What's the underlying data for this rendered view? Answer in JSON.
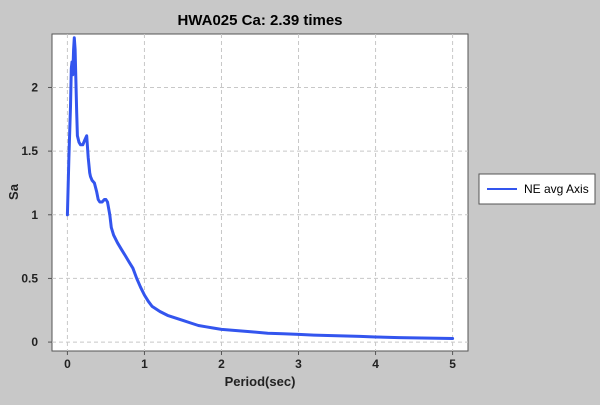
{
  "chart_data": {
    "type": "line",
    "title": "HWA025 Ca: 2.39 times",
    "xlabel": "Period(sec)",
    "ylabel": "Sa",
    "xlim": [
      -0.2,
      5.2
    ],
    "ylim": [
      -0.07,
      2.42
    ],
    "x_ticks": [
      0,
      1,
      2,
      3,
      4,
      5
    ],
    "y_ticks": [
      0,
      0.5,
      1,
      1.5,
      2
    ],
    "y_tick_labels": [
      "0",
      "0.5",
      "1",
      "1.5",
      "2"
    ],
    "grid": true,
    "legend_position": "right",
    "colors": {
      "series": "#3355ee",
      "plot_bg": "#ffffff",
      "background": "#c8c8c8",
      "grid": "#c8c8c8"
    },
    "series": [
      {
        "name": "NE avg Axis",
        "x": [
          0,
          0.02,
          0.04,
          0.05,
          0.06,
          0.07,
          0.08,
          0.09,
          0.1,
          0.11,
          0.12,
          0.13,
          0.15,
          0.17,
          0.2,
          0.22,
          0.25,
          0.27,
          0.29,
          0.3,
          0.32,
          0.35,
          0.38,
          0.4,
          0.42,
          0.45,
          0.48,
          0.5,
          0.52,
          0.55,
          0.57,
          0.6,
          0.65,
          0.7,
          0.75,
          0.8,
          0.85,
          0.9,
          0.95,
          1.0,
          1.05,
          1.1,
          1.2,
          1.3,
          1.4,
          1.5,
          1.6,
          1.7,
          1.8,
          1.9,
          2.0,
          2.2,
          2.4,
          2.6,
          2.8,
          3.0,
          3.2,
          3.5,
          3.8,
          4.0,
          4.3,
          4.6,
          4.8,
          5.0
        ],
        "y": [
          1.0,
          1.45,
          1.85,
          2.15,
          2.2,
          2.1,
          2.3,
          2.39,
          2.3,
          2.05,
          1.8,
          1.62,
          1.57,
          1.55,
          1.55,
          1.58,
          1.62,
          1.45,
          1.33,
          1.3,
          1.27,
          1.25,
          1.18,
          1.12,
          1.1,
          1.1,
          1.12,
          1.12,
          1.1,
          1.0,
          0.9,
          0.84,
          0.78,
          0.73,
          0.68,
          0.63,
          0.58,
          0.5,
          0.43,
          0.37,
          0.32,
          0.28,
          0.24,
          0.21,
          0.19,
          0.17,
          0.15,
          0.13,
          0.12,
          0.11,
          0.1,
          0.09,
          0.08,
          0.07,
          0.065,
          0.06,
          0.055,
          0.05,
          0.045,
          0.04,
          0.035,
          0.032,
          0.03,
          0.028
        ]
      }
    ]
  }
}
